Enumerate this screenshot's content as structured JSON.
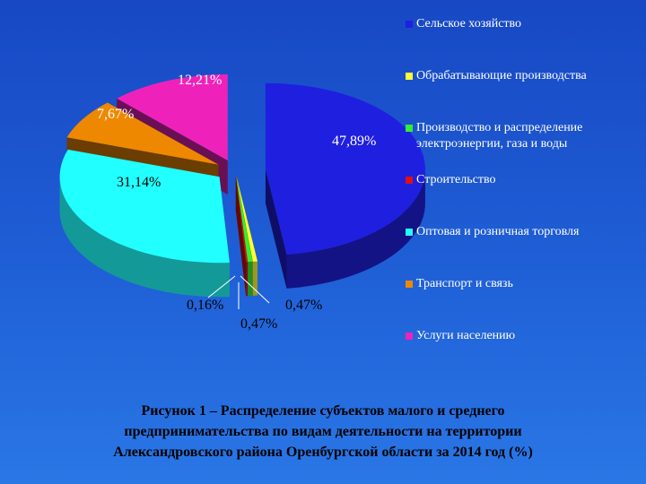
{
  "chart_data": {
    "type": "pie",
    "title": "",
    "categories": [
      "Сельское хозяйство",
      "Обрабатывающие производства",
      "Производство и распределение электроэнергии, газа и воды",
      "Строительство",
      "Оптовая и розничная торговля",
      "Транспорт и связь",
      "Услуги населению"
    ],
    "values": [
      47.89,
      0.47,
      0.47,
      0.16,
      31.14,
      7.67,
      12.21
    ],
    "value_labels": [
      "47,89%",
      "0,47%",
      "0,47%",
      "0,16%",
      "31,14%",
      "7,67%",
      "12,21%"
    ],
    "colors": [
      "#1f1fe0",
      "#ffff33",
      "#33ee33",
      "#dd1111",
      "#22ffff",
      "#ee8800",
      "#ee22bb"
    ],
    "legend_position": "right",
    "exploded": true,
    "three_d": true
  },
  "legend": {
    "items": [
      {
        "label": "Сельское хозяйство",
        "color": "#1f1fe0"
      },
      {
        "label": "Обрабатывающие производства",
        "color": "#ffff33"
      },
      {
        "label": "Производство и распределение\nэлектроэнергии, газа и воды",
        "color": "#33ee33"
      },
      {
        "label": "Строительство",
        "color": "#dd1111"
      },
      {
        "label": "Оптовая и розничная торговля",
        "color": "#22ffff"
      },
      {
        "label": "Транспорт и связь",
        "color": "#ee8800"
      },
      {
        "label": "Услуги населению",
        "color": "#ee22bb"
      }
    ]
  },
  "caption": {
    "text": "Рисунок 1 – Распределение субъектов малого и среднего\nпредпринимательства  по видам деятельности на территории\nАлександровского района Оренбургской области  за 2014 год (%)"
  }
}
